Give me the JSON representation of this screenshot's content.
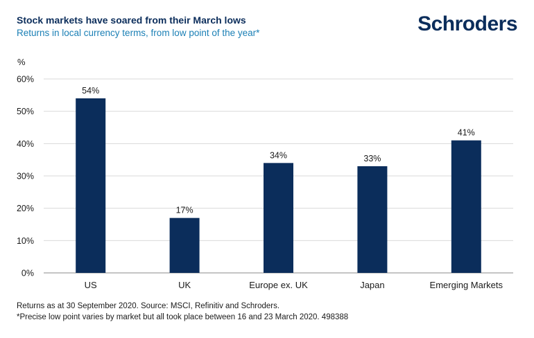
{
  "header": {
    "title": "Stock markets have soared from their March lows",
    "subtitle": "Returns in local currency terms, from low point of the year*",
    "brand": "Schroders"
  },
  "chart_data": {
    "type": "bar",
    "title": "Stock markets have soared from their March lows",
    "subtitle": "Returns in local currency terms, from low point of the year*",
    "ylabel": "%",
    "xlabel": "",
    "categories": [
      "US",
      "UK",
      "Europe ex. UK",
      "Japan",
      "Emerging Markets"
    ],
    "values": [
      54,
      17,
      34,
      33,
      41
    ],
    "data_labels": [
      "54%",
      "17%",
      "34%",
      "33%",
      "41%"
    ],
    "ylim": [
      0,
      60
    ],
    "yticks": [
      0,
      10,
      20,
      30,
      40,
      50,
      60
    ],
    "ytick_labels": [
      "0%",
      "10%",
      "20%",
      "30%",
      "40%",
      "50%",
      "60%"
    ],
    "grid": true,
    "bar_color": "#0b2d5b"
  },
  "footnotes": {
    "line1": "Returns as at 30 September 2020. Source: MSCI, Refinitiv and Schroders.",
    "line2": "*Precise low point varies by market but all took place between 16 and 23 March 2020. 498388"
  }
}
